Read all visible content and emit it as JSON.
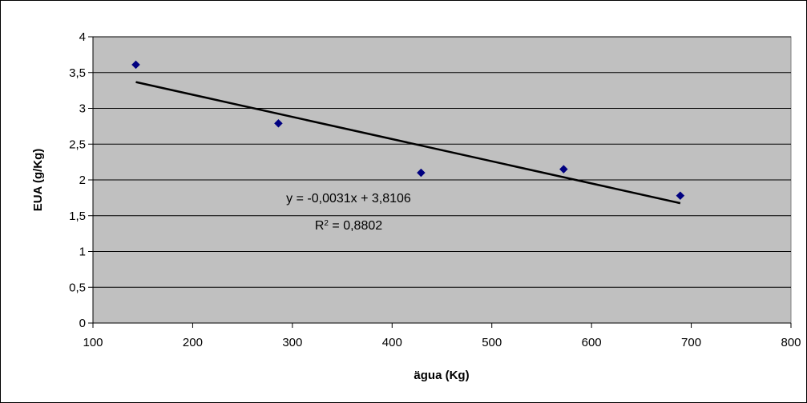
{
  "chart_data": {
    "type": "scatter",
    "title": "",
    "xlabel": "ägua (Kg)",
    "ylabel": "EUA (g/Kg)",
    "xlim": [
      100,
      800
    ],
    "ylim": [
      0,
      4
    ],
    "x_ticks": [
      "100",
      "200",
      "300",
      "400",
      "500",
      "600",
      "700",
      "800"
    ],
    "y_ticks": [
      "0",
      "0,5",
      "1",
      "1,5",
      "2",
      "2,5",
      "3",
      "3,5",
      "4"
    ],
    "grid": "horizontal",
    "plot_background": "#c0c0c0",
    "marker_color": "#000080",
    "trendline_color": "#000000",
    "series": [
      {
        "x": [
          143,
          286,
          429,
          572,
          689
        ],
        "y": [
          3.61,
          2.79,
          2.1,
          2.15,
          1.78
        ]
      }
    ],
    "trendline": {
      "slope": -0.0031,
      "intercept": 3.8106,
      "x_range": [
        143,
        689
      ],
      "equation_text": "y = -0,0031x + 3,8106",
      "r2_prefix": "R",
      "r2_exp": "2",
      "r2_text": " = 0,8802"
    }
  }
}
